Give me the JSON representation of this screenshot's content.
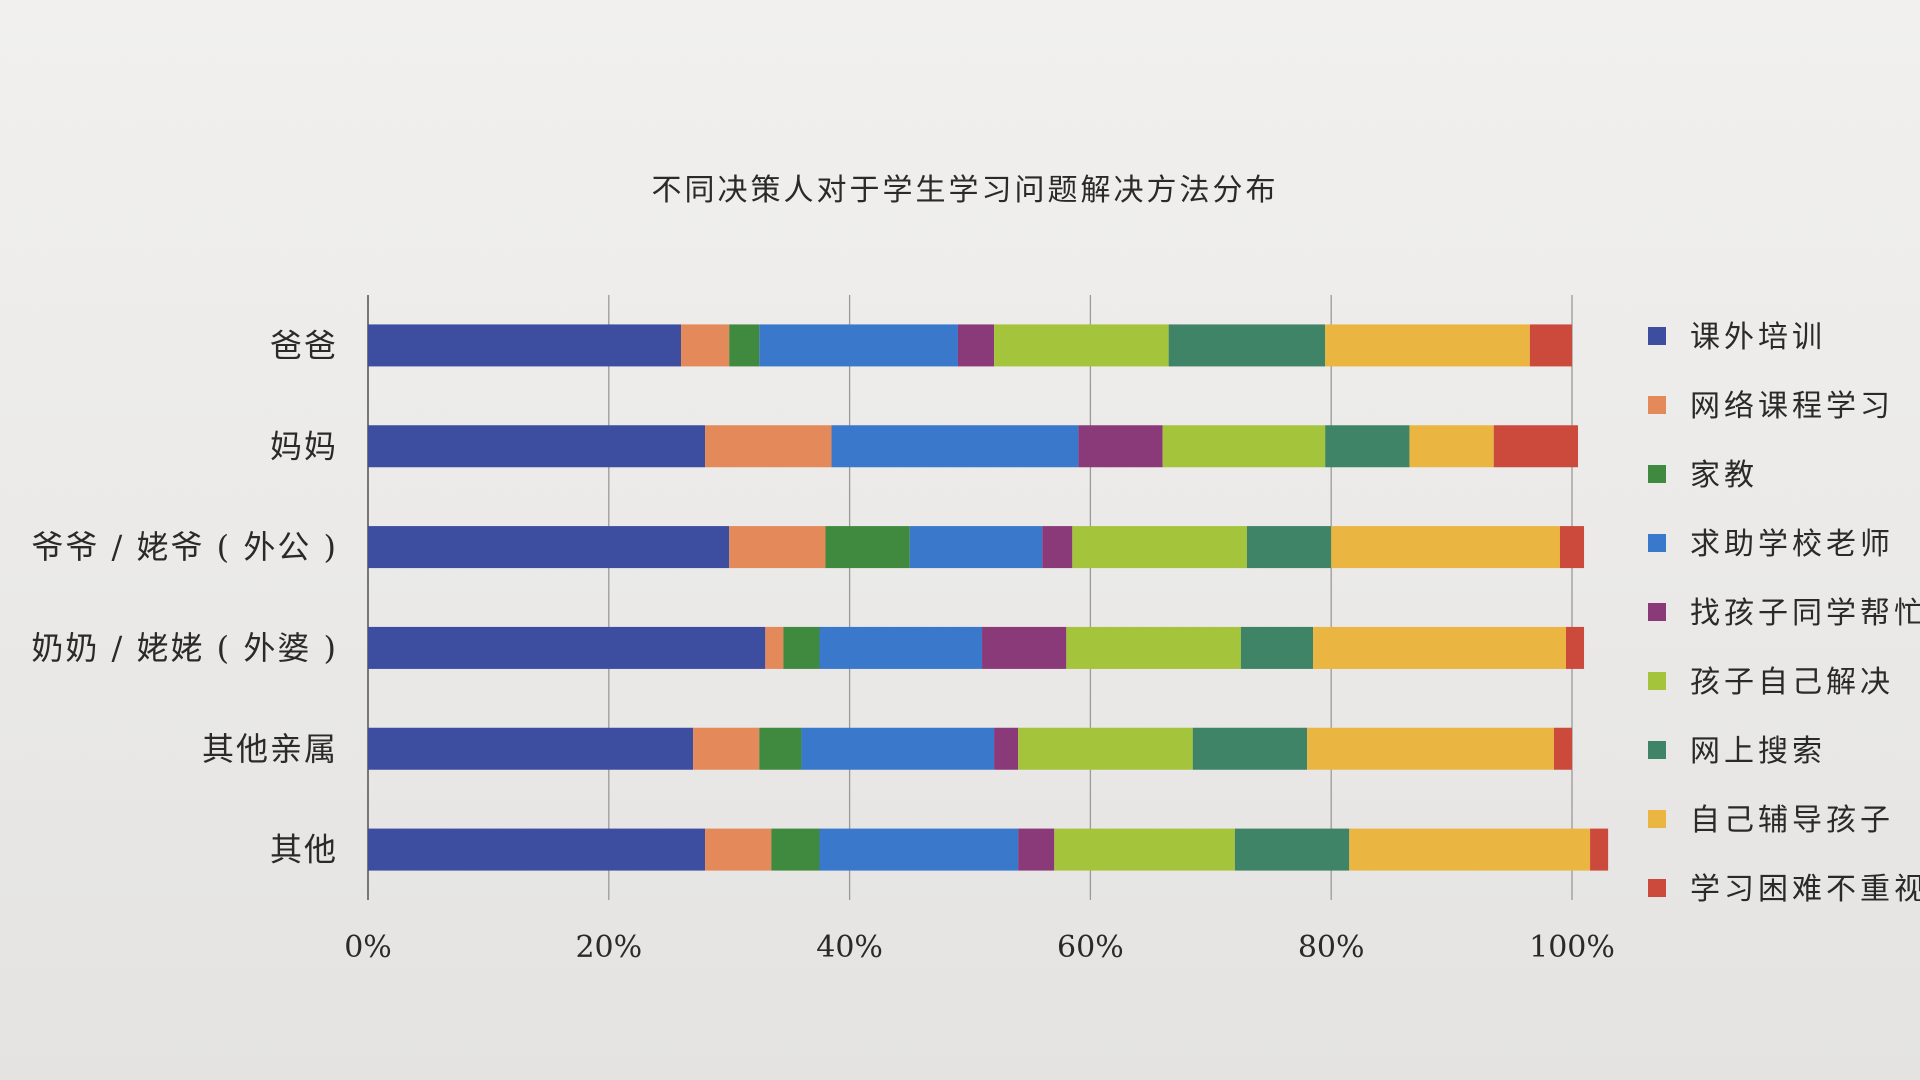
{
  "chart_data": {
    "type": "bar",
    "orientation": "horizontal",
    "stacked": "percent",
    "title": "不同决策人对于学生学习问题解决方法分布",
    "xlabel": "",
    "ylabel": "",
    "xlim": [
      0,
      100
    ],
    "x_ticks": [
      "0%",
      "20%",
      "40%",
      "60%",
      "80%",
      "100%"
    ],
    "grid": "vertical",
    "legend_position": "right",
    "categories": [
      "爸爸",
      "妈妈",
      "爷爷 / 姥爷 ( 外公 )",
      "奶奶 / 姥姥 ( 外婆 )",
      "其他亲属",
      "其他"
    ],
    "series": [
      {
        "name": "课外培训",
        "color": "#3d4ea0",
        "values": [
          26,
          28,
          30,
          33,
          27,
          28
        ]
      },
      {
        "name": "网络课程学习",
        "color": "#e3895a",
        "values": [
          4,
          10.5,
          8,
          1.5,
          5.5,
          5.5
        ]
      },
      {
        "name": "家教",
        "color": "#3f8a3f",
        "values": [
          2.5,
          0,
          7,
          3,
          3.5,
          4
        ]
      },
      {
        "name": "求助学校老师",
        "color": "#3a78cc",
        "values": [
          16.5,
          20.5,
          11,
          13.5,
          16,
          16.5
        ]
      },
      {
        "name": "找孩子同学帮忙",
        "color": "#8a3a78",
        "values": [
          3,
          7,
          2.5,
          7,
          2,
          3
        ]
      },
      {
        "name": "孩子自己解决",
        "color": "#a4c43c",
        "values": [
          14.5,
          13.5,
          14.5,
          14.5,
          14.5,
          15
        ]
      },
      {
        "name": "网上搜索",
        "color": "#3f8466",
        "values": [
          13,
          7,
          7,
          6,
          9.5,
          9.5
        ]
      },
      {
        "name": "自己辅导孩子",
        "color": "#eab540",
        "values": [
          17,
          7,
          19,
          21,
          20.5,
          20
        ]
      },
      {
        "name": "学习困难不重视",
        "color": "#cc4a3c",
        "values": [
          3.5,
          7,
          2,
          1.5,
          1.5,
          1.5
        ]
      }
    ]
  }
}
